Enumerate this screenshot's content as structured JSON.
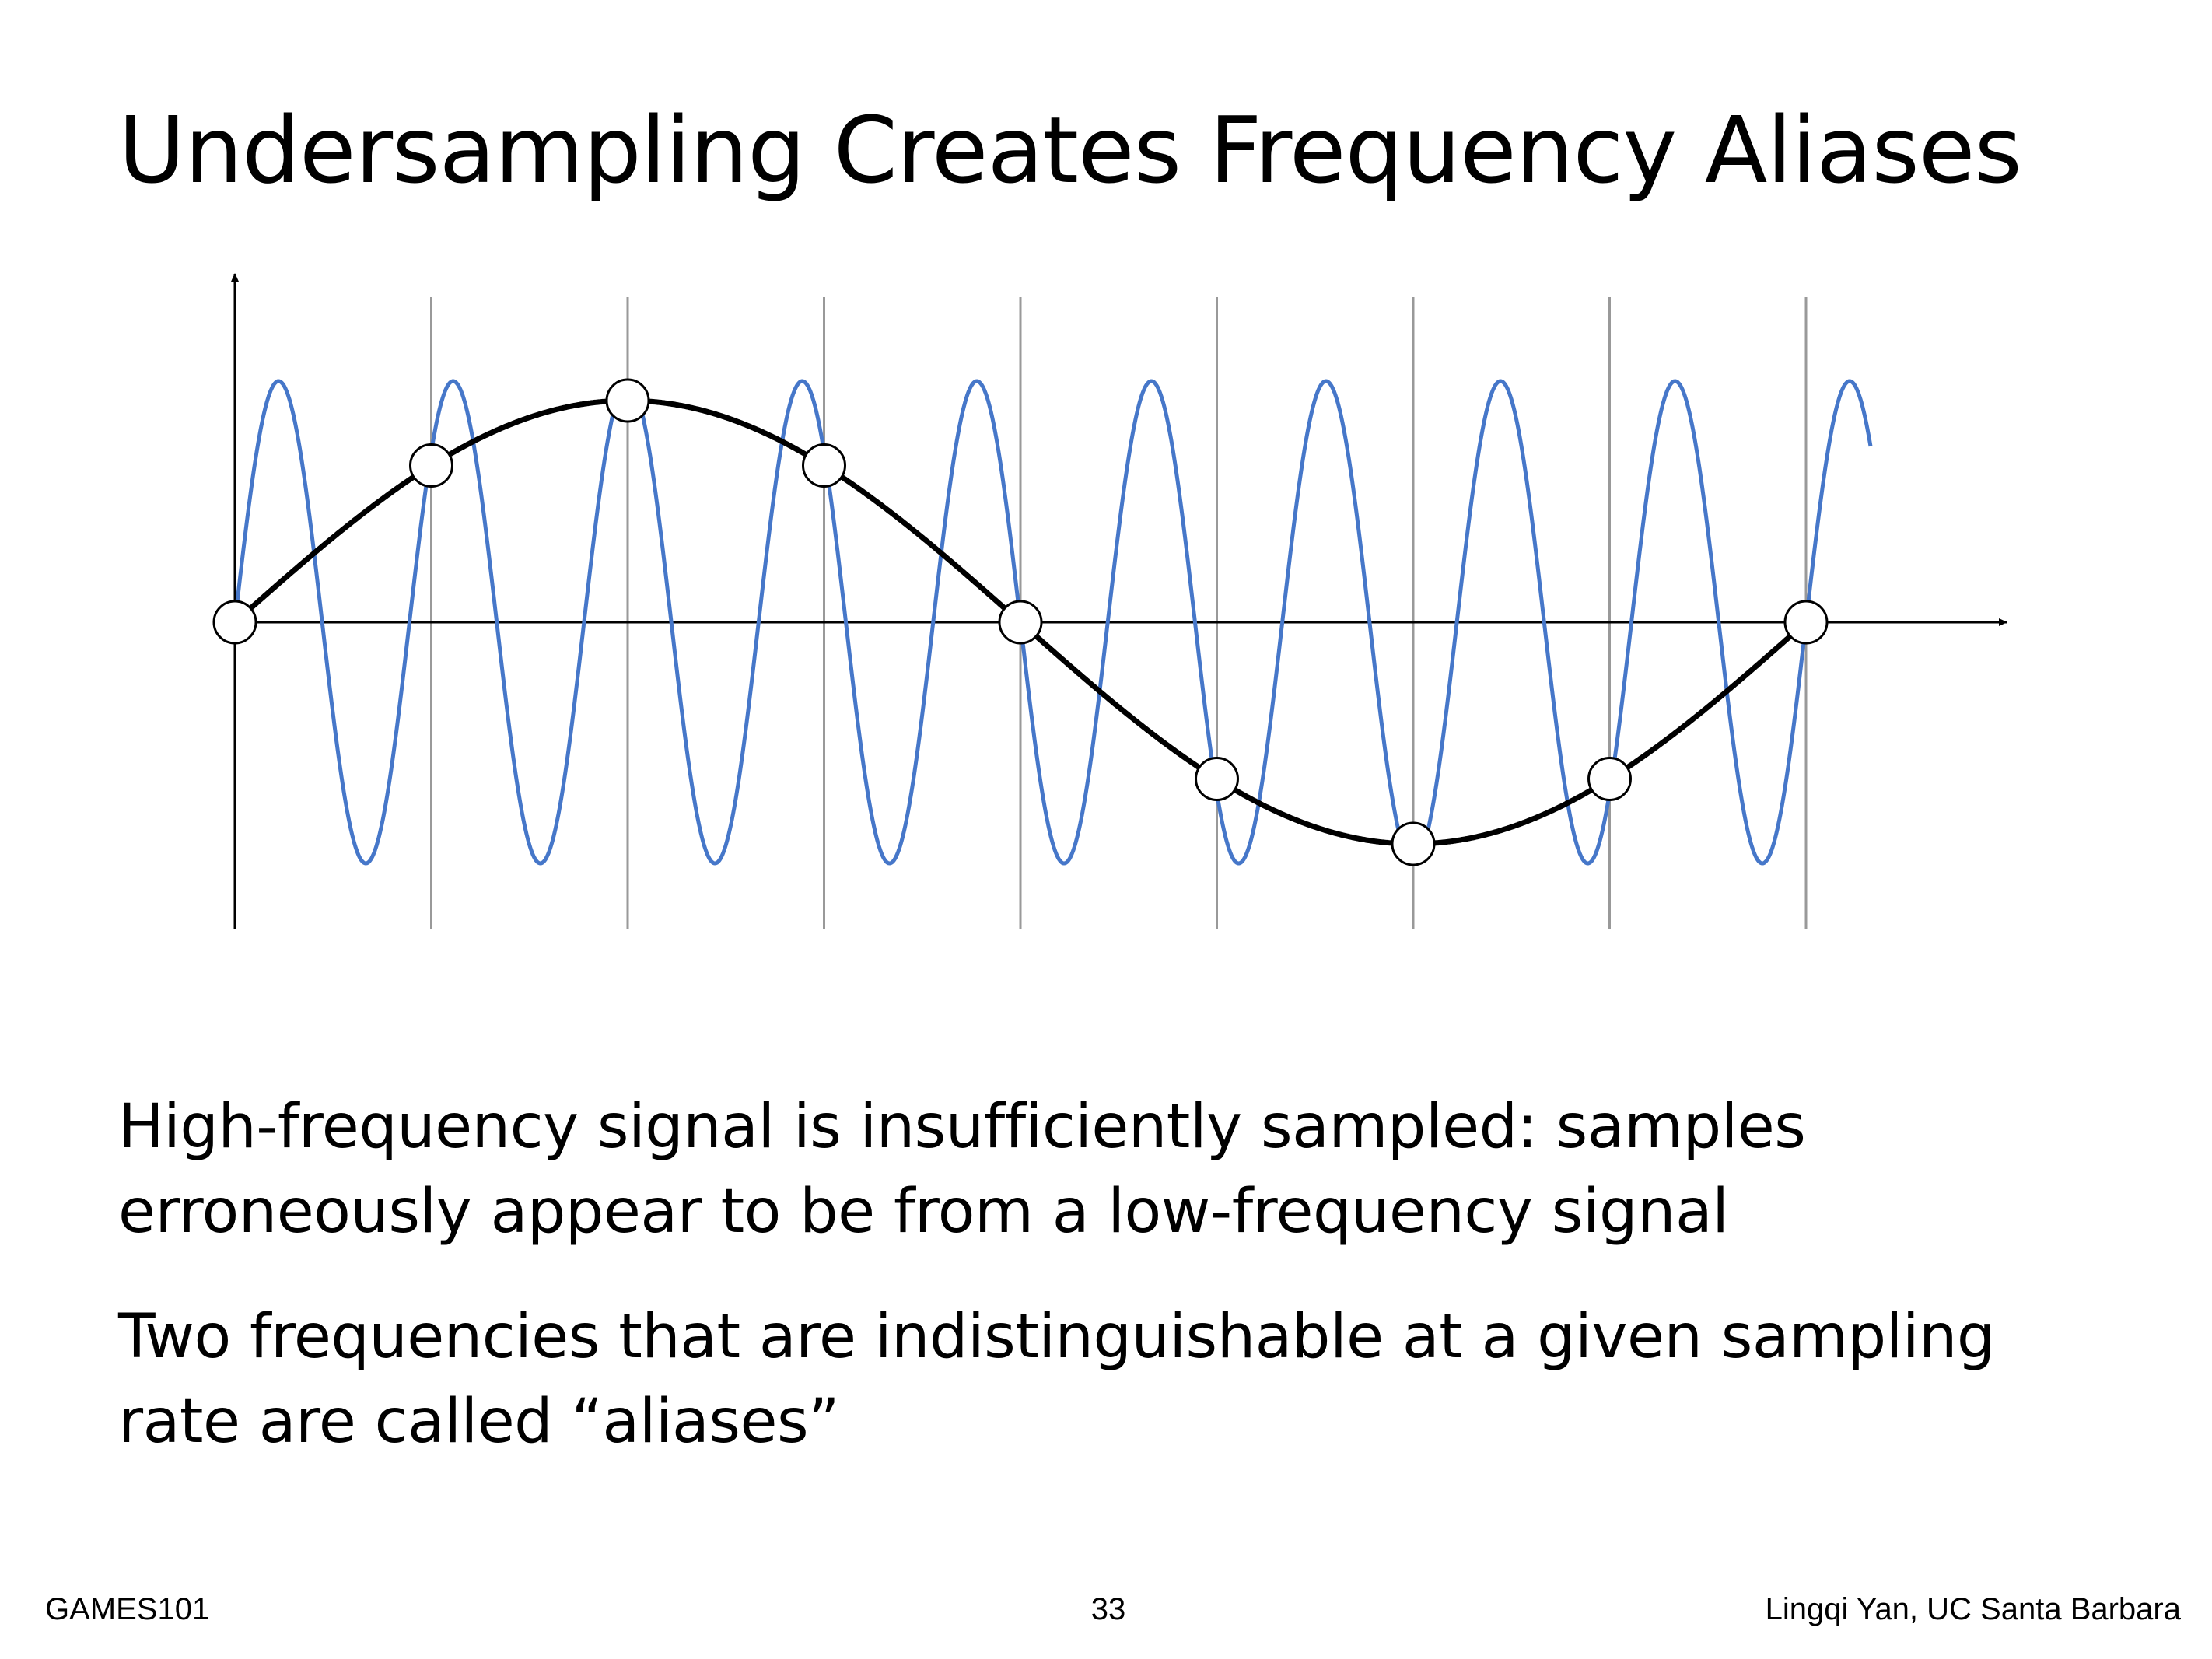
{
  "slide": {
    "title": "Undersampling Creates Frequency Aliases",
    "paragraphs": [
      "High-frequency signal is insufficiently sampled: samples erroneously appear to be from a low-frequency signal",
      "Two frequencies that are indistinguishable at a given sampling rate are called “aliases”"
    ]
  },
  "figure": {
    "high_frequency_cycles_per_sample": 1.125,
    "alias_cycles_per_sample": 0.125,
    "sample_count": 9,
    "colors": {
      "high_frequency_wave": "#4677c9",
      "alias_wave": "#000000",
      "sample_lines": "#999999",
      "axes": "#000000",
      "sample_marker_fill": "#ffffff"
    }
  },
  "footer": {
    "course": "GAMES101",
    "page_number": "33",
    "author": "Lingqi Yan, UC Santa Barbara"
  }
}
